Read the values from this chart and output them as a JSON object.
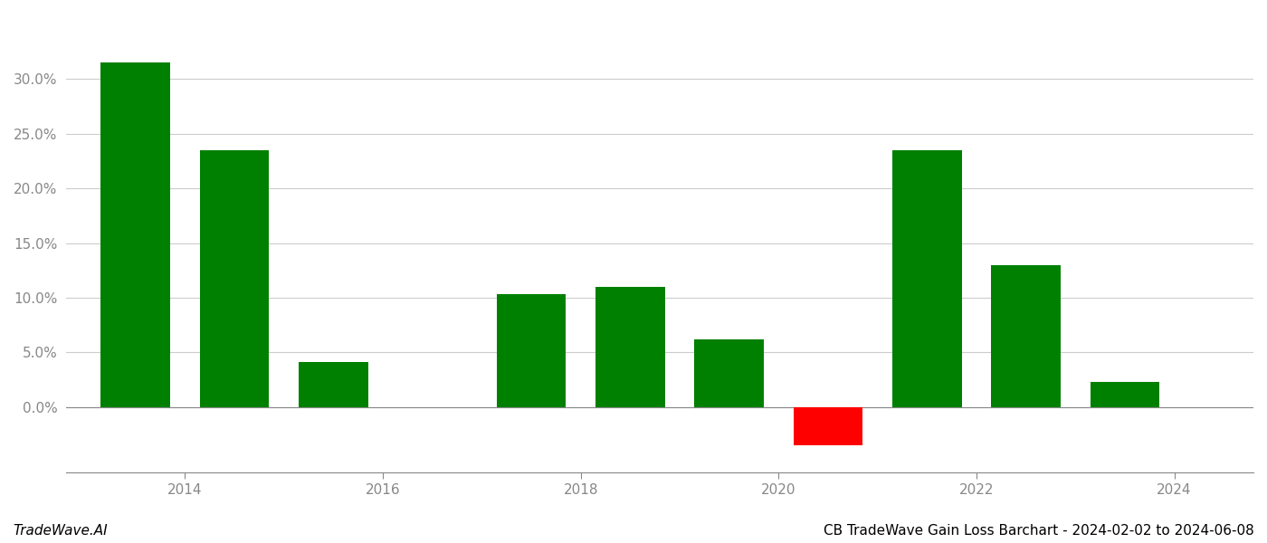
{
  "years": [
    2013.5,
    2014.5,
    2015.5,
    2017.5,
    2018.5,
    2019.5,
    2020.5,
    2021.5,
    2022.5,
    2023.5
  ],
  "values": [
    0.315,
    0.235,
    0.041,
    0.103,
    0.11,
    0.062,
    -0.035,
    0.235,
    0.13,
    0.023
  ],
  "colors": [
    "#008000",
    "#008000",
    "#008000",
    "#008000",
    "#008000",
    "#008000",
    "#ff0000",
    "#008000",
    "#008000",
    "#008000"
  ],
  "title": "CB TradeWave Gain Loss Barchart - 2024-02-02 to 2024-06-08",
  "watermark": "TradeWave.AI",
  "xlim": [
    2012.8,
    2024.8
  ],
  "ylim": [
    -0.06,
    0.36
  ],
  "xticks": [
    2014,
    2016,
    2018,
    2020,
    2022,
    2024
  ],
  "yticks": [
    0.0,
    0.05,
    0.1,
    0.15,
    0.2,
    0.25,
    0.3
  ],
  "bar_width": 0.7,
  "background_color": "#ffffff",
  "grid_color": "#cccccc",
  "axis_color": "#888888",
  "title_fontsize": 11,
  "watermark_fontsize": 11,
  "tick_fontsize": 11
}
